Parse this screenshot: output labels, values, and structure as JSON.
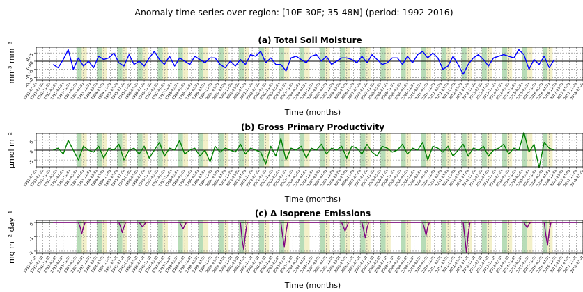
{
  "suptitle": "Anomaly time series over region: [10E-30E; 35-48N] (period: 1992-2016)",
  "colors": {
    "sm": "#0000ff",
    "gpp": "#008000",
    "iso": "#800080",
    "spring_band": "#b7dcb7",
    "summer_band": "#f3f0c8"
  },
  "chart_data": [
    {
      "type": "line",
      "title": "(a) Total Soil Moisture",
      "ylabel": "mm³ mm⁻³",
      "xlabel": "Time (months)",
      "ylim": [
        -0.115,
        0.085
      ],
      "yticks": [
        0.05,
        0.0,
        -0.05,
        -0.1
      ],
      "ytick_labels": [
        "0.05",
        "0.00",
        "-0.05",
        "-0.10"
      ],
      "grid": true,
      "series": [
        {
          "color_key": "sm",
          "x": [
            "1992-01",
            "1992-04",
            "1992-07",
            "1992-10",
            "1993-01",
            "1993-04",
            "1993-07",
            "1993-10",
            "1994-01",
            "1994-04",
            "1994-07",
            "1994-10",
            "1995-01",
            "1995-04",
            "1995-07",
            "1995-10",
            "1996-01",
            "1996-04",
            "1996-07",
            "1996-10",
            "1997-01",
            "1997-04",
            "1997-07",
            "1997-10",
            "1998-01",
            "1998-04",
            "1998-07",
            "1998-10",
            "1999-01",
            "1999-04",
            "1999-07",
            "1999-10",
            "2000-01",
            "2000-04",
            "2000-07",
            "2000-10",
            "2001-01",
            "2001-04",
            "2001-07",
            "2001-10",
            "2002-01",
            "2002-04",
            "2002-07",
            "2002-10",
            "2003-01",
            "2003-04",
            "2003-07",
            "2003-10",
            "2004-01",
            "2004-04",
            "2004-07",
            "2004-10",
            "2005-01",
            "2005-04",
            "2005-07",
            "2005-10",
            "2006-01",
            "2006-04",
            "2006-07",
            "2006-10",
            "2007-01",
            "2007-04",
            "2007-07",
            "2007-10",
            "2008-01",
            "2008-04",
            "2008-07",
            "2008-10",
            "2009-01",
            "2009-04",
            "2009-07",
            "2009-10",
            "2010-01",
            "2010-04",
            "2010-07",
            "2010-10",
            "2011-01",
            "2011-04",
            "2011-07",
            "2011-10",
            "2012-01",
            "2012-04",
            "2012-07",
            "2012-10",
            "2013-01",
            "2013-04",
            "2013-07",
            "2013-10",
            "2014-01",
            "2014-04",
            "2014-07",
            "2014-10",
            "2015-01",
            "2015-04",
            "2015-07",
            "2015-10",
            "2016-01",
            "2016-04",
            "2016-07",
            "2016-10"
          ],
          "values": [
            -0.02,
            -0.04,
            0.01,
            0.07,
            -0.05,
            0.02,
            -0.03,
            0.0,
            -0.04,
            0.03,
            0.01,
            0.02,
            0.05,
            -0.01,
            -0.03,
            0.04,
            -0.02,
            0.0,
            -0.03,
            0.02,
            0.06,
            0.01,
            -0.02,
            0.03,
            -0.03,
            0.02,
            0.0,
            -0.02,
            0.03,
            0.01,
            -0.01,
            0.02,
            0.02,
            -0.02,
            -0.04,
            0.0,
            -0.03,
            0.01,
            -0.02,
            0.04,
            0.03,
            0.06,
            -0.01,
            0.02,
            -0.02,
            -0.02,
            -0.06,
            0.02,
            0.03,
            0.01,
            -0.01,
            0.03,
            0.04,
            0.0,
            0.03,
            -0.02,
            0.0,
            0.02,
            0.02,
            0.01,
            -0.01,
            0.03,
            -0.01,
            0.04,
            0.01,
            -0.02,
            -0.01,
            0.02,
            0.02,
            -0.02,
            0.03,
            -0.01,
            0.04,
            0.06,
            0.02,
            0.05,
            0.02,
            -0.05,
            -0.03,
            0.03,
            -0.02,
            -0.08,
            -0.02,
            0.02,
            0.04,
            0.01,
            -0.03,
            0.02,
            0.03,
            0.04,
            0.03,
            0.02,
            0.07,
            0.04,
            -0.05,
            0.01,
            -0.02,
            0.03,
            -0.04,
            0.01
          ]
        }
      ]
    },
    {
      "type": "line",
      "title": "(b) Gross Primary Productivity",
      "ylabel": "μmol m⁻²",
      "xlabel": "Time (months)",
      "ylim": [
        -8.5,
        8.5
      ],
      "yticks": [
        5,
        0,
        -5
      ],
      "ytick_labels": [
        "5",
        "0",
        "-5"
      ],
      "grid": true,
      "series": [
        {
          "color_key": "gpp",
          "x": [
            "1992-01",
            "1992-04",
            "1992-07",
            "1992-10",
            "1993-01",
            "1993-04",
            "1993-07",
            "1993-10",
            "1994-01",
            "1994-04",
            "1994-07",
            "1994-10",
            "1995-01",
            "1995-04",
            "1995-07",
            "1995-10",
            "1996-01",
            "1996-04",
            "1996-07",
            "1996-10",
            "1997-01",
            "1997-04",
            "1997-07",
            "1997-10",
            "1998-01",
            "1998-04",
            "1998-07",
            "1998-10",
            "1999-01",
            "1999-04",
            "1999-07",
            "1999-10",
            "2000-01",
            "2000-04",
            "2000-07",
            "2000-10",
            "2001-01",
            "2001-04",
            "2001-07",
            "2001-10",
            "2002-01",
            "2002-04",
            "2002-07",
            "2002-10",
            "2003-01",
            "2003-04",
            "2003-07",
            "2003-10",
            "2004-01",
            "2004-04",
            "2004-07",
            "2004-10",
            "2005-01",
            "2005-04",
            "2005-07",
            "2005-10",
            "2006-01",
            "2006-04",
            "2006-07",
            "2006-10",
            "2007-01",
            "2007-04",
            "2007-07",
            "2007-10",
            "2008-01",
            "2008-04",
            "2008-07",
            "2008-10",
            "2009-01",
            "2009-04",
            "2009-07",
            "2009-10",
            "2010-01",
            "2010-04",
            "2010-07",
            "2010-10",
            "2011-01",
            "2011-04",
            "2011-07",
            "2011-10",
            "2012-01",
            "2012-04",
            "2012-07",
            "2012-10",
            "2013-01",
            "2013-04",
            "2013-07",
            "2013-10",
            "2014-01",
            "2014-04",
            "2014-07",
            "2014-10",
            "2015-01",
            "2015-04",
            "2015-07",
            "2015-10",
            "2016-01",
            "2016-04",
            "2016-07",
            "2016-10"
          ],
          "values": [
            0,
            1,
            -2,
            5,
            0,
            -5,
            2,
            0,
            -1,
            2,
            -4,
            1,
            0,
            3,
            -5,
            0,
            1,
            -2,
            2,
            -4,
            0,
            4,
            -3,
            1,
            0,
            5,
            -2,
            0,
            1,
            -3,
            0,
            -6,
            2,
            -1,
            1,
            0,
            -1,
            3,
            -2,
            1,
            0,
            -1,
            -7,
            2,
            -3,
            6,
            -5,
            1,
            0,
            2,
            -4,
            1,
            0,
            3,
            -2,
            1,
            0,
            2,
            -4,
            2,
            1,
            -2,
            3,
            -1,
            -3,
            2,
            1,
            -1,
            0,
            3,
            -2,
            1,
            0,
            4,
            -5,
            2,
            1,
            -1,
            2,
            -3,
            0,
            3,
            -3,
            1,
            0,
            2,
            -3,
            0,
            1,
            3,
            -2,
            1,
            0,
            9,
            -1,
            3,
            -9,
            4,
            1,
            0
          ]
        }
      ]
    },
    {
      "type": "line",
      "title": "(c) Δ Isoprene Emissions",
      "ylabel": "mg m⁻² day⁻¹",
      "xlabel": "Time (months)",
      "ylim": [
        -2.15,
        0.15
      ],
      "yticks": [
        0,
        -1,
        -2
      ],
      "ytick_labels": [
        "0",
        "-1",
        "-2"
      ],
      "grid": true,
      "series": [
        {
          "color_key": "iso",
          "x": [
            "1992-01",
            "1993-04",
            "1993-05",
            "1993-06",
            "1993-07",
            "1993-08",
            "1995-04",
            "1995-05",
            "1995-06",
            "1995-07",
            "1995-08",
            "1996-04",
            "1996-05",
            "1996-06",
            "1996-07",
            "1996-08",
            "1998-04",
            "1998-05",
            "1998-06",
            "1998-07",
            "1998-08",
            "2001-04",
            "2001-05",
            "2001-06",
            "2001-07",
            "2001-08",
            "2003-04",
            "2003-05",
            "2003-06",
            "2003-07",
            "2003-08",
            "2006-04",
            "2006-05",
            "2006-06",
            "2006-07",
            "2006-08",
            "2007-04",
            "2007-05",
            "2007-06",
            "2007-07",
            "2007-08",
            "2010-04",
            "2010-05",
            "2010-06",
            "2010-07",
            "2010-08",
            "2012-04",
            "2012-05",
            "2012-06",
            "2012-07",
            "2012-08",
            "2015-04",
            "2015-05",
            "2015-06",
            "2015-07",
            "2015-08",
            "2016-04",
            "2016-05",
            "2016-06",
            "2016-07",
            "2016-08",
            "2017-12"
          ],
          "values": [
            0,
            0,
            -0.3,
            -0.8,
            -0.3,
            0,
            0,
            -0.3,
            -0.7,
            -0.3,
            0,
            0,
            -0.15,
            -0.3,
            -0.15,
            0,
            0,
            -0.2,
            -0.45,
            -0.2,
            0,
            0,
            -1.2,
            -1.9,
            -0.8,
            0,
            0,
            -0.9,
            -1.7,
            -0.7,
            0,
            0,
            -0.3,
            -0.6,
            -0.3,
            0,
            0,
            -0.5,
            -1.1,
            -0.4,
            0,
            0,
            -0.4,
            -0.9,
            -0.3,
            0,
            0,
            -1.1,
            -2.1,
            -0.8,
            0,
            0,
            -0.2,
            -0.35,
            -0.1,
            0,
            0,
            -0.9,
            -1.6,
            -0.6,
            0,
            0
          ]
        }
      ]
    }
  ],
  "bands": {
    "years": [
      1993,
      1994,
      1995,
      1996,
      1997,
      1998,
      1999,
      2000,
      2001,
      2002,
      2003,
      2004,
      2005,
      2006,
      2007,
      2008,
      2009,
      2010,
      2011,
      2012,
      2013,
      2014,
      2015,
      2016
    ],
    "spring_months": [
      3,
      4,
      5
    ],
    "summer_months": [
      6,
      7,
      8
    ]
  },
  "x_ticks": {
    "start": "1991-03",
    "end": "2018-03",
    "step_months": 4
  }
}
